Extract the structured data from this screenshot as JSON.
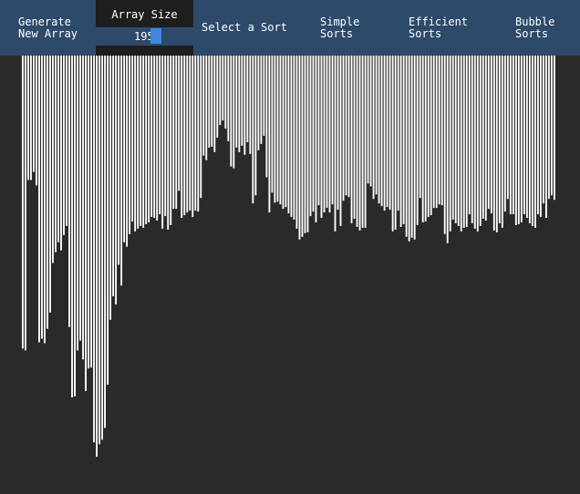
{
  "toolbar": {
    "generate_label_line1": "Generate",
    "generate_label_line2": "New Array",
    "array_size_label": "Array Size",
    "array_size_value": "195",
    "select_sort_label": "Select a Sort",
    "simple_label_line1": "Simple",
    "simple_label_line2": "Sorts",
    "efficient_label_line1": "Efficient",
    "efficient_label_line2": "Sorts",
    "bubble_label_line1": "Bubble",
    "bubble_label_line2": "Sorts"
  },
  "colors": {
    "toolbar_bg": "#2d4a6b",
    "panel_bg": "#1e1e1e",
    "canvas_bg": "#2a2a2a",
    "bar_color": "#ffffff",
    "cursor_color": "#3f86e0"
  },
  "array": {
    "count": 195,
    "max_value": 460,
    "values": [
      325,
      327,
      138,
      138,
      129,
      144,
      318,
      314,
      319,
      303,
      285,
      230,
      218,
      207,
      216,
      199,
      189,
      301,
      379,
      378,
      327,
      316,
      337,
      372,
      347,
      346,
      429,
      445,
      431,
      426,
      413,
      365,
      293,
      267,
      276,
      232,
      255,
      207,
      212,
      198,
      184,
      195,
      192,
      189,
      191,
      187,
      185,
      179,
      180,
      183,
      176,
      192,
      178,
      193,
      188,
      170,
      170,
      150,
      180,
      177,
      174,
      172,
      179,
      172,
      173,
      158,
      111,
      116,
      102,
      101,
      107,
      91,
      77,
      72,
      81,
      95,
      123,
      125,
      102,
      107,
      100,
      110,
      96,
      109,
      164,
      155,
      105,
      98,
      89,
      135,
      174,
      152,
      163,
      162,
      165,
      170,
      168,
      175,
      179,
      182,
      192,
      204,
      201,
      197,
      196,
      178,
      173,
      185,
      166,
      180,
      174,
      169,
      174,
      165,
      195,
      171,
      189,
      161,
      155,
      157,
      186,
      181,
      190,
      194,
      191,
      191,
      142,
      145,
      159,
      154,
      164,
      167,
      172,
      168,
      171,
      195,
      193,
      172,
      190,
      187,
      201,
      206,
      202,
      204,
      188,
      158,
      185,
      184,
      179,
      177,
      169,
      169,
      165,
      166,
      198,
      208,
      195,
      182,
      186,
      189,
      195,
      191,
      190,
      176,
      186,
      192,
      195,
      189,
      181,
      183,
      170,
      175,
      194,
      196,
      186,
      191,
      173,
      159,
      176,
      176,
      188,
      187,
      185,
      176,
      180,
      186,
      189,
      191,
      176,
      179,
      164,
      180,
      159,
      155,
      160
    ]
  }
}
